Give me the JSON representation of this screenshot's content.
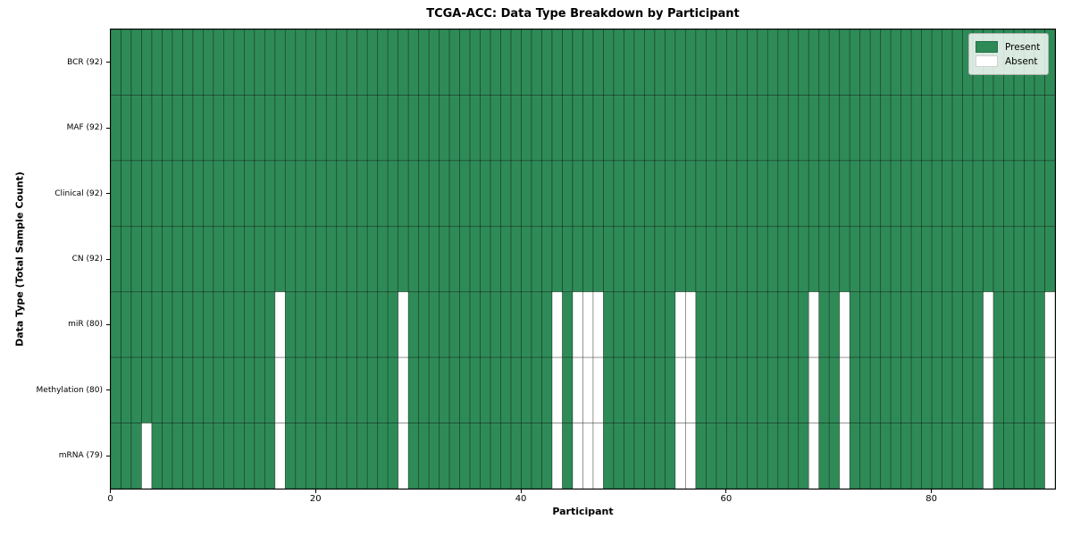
{
  "chart_data": {
    "type": "heatmap",
    "title": "TCGA-ACC: Data Type Breakdown by Participant",
    "xlabel": "Participant",
    "ylabel": "Data Type (Total Sample Count)",
    "n_participants": 92,
    "x_axis": {
      "ticks": [
        0,
        20,
        40,
        60,
        80
      ],
      "range": [
        0,
        92
      ]
    },
    "rows": [
      {
        "label": "BCR (92)",
        "total_samples": 92,
        "absent_participants": []
      },
      {
        "label": "MAF (92)",
        "total_samples": 92,
        "absent_participants": []
      },
      {
        "label": "Clinical (92)",
        "total_samples": 92,
        "absent_participants": []
      },
      {
        "label": "CN (92)",
        "total_samples": 92,
        "absent_participants": []
      },
      {
        "label": "miR (80)",
        "total_samples": 80,
        "absent_participants": [
          16,
          28,
          43,
          45,
          46,
          47,
          55,
          56,
          68,
          71,
          85,
          91
        ]
      },
      {
        "label": "Methylation (80)",
        "total_samples": 80,
        "absent_participants": [
          16,
          28,
          43,
          45,
          46,
          47,
          55,
          56,
          68,
          71,
          85,
          91
        ]
      },
      {
        "label": "mRNA (79)",
        "total_samples": 79,
        "absent_participants": [
          3,
          16,
          28,
          43,
          45,
          46,
          47,
          55,
          56,
          68,
          71,
          85,
          91
        ]
      }
    ],
    "legend": {
      "position": "upper right",
      "entries": [
        {
          "label": "Present",
          "color": "#2e8b57"
        },
        {
          "label": "Absent",
          "color": "#ffffff"
        }
      ]
    },
    "colors": {
      "present": "#2e8b57",
      "absent": "#ffffff",
      "grid_line": "#000000",
      "grid_line_opacity": "0.45",
      "spine": "#000000"
    }
  }
}
